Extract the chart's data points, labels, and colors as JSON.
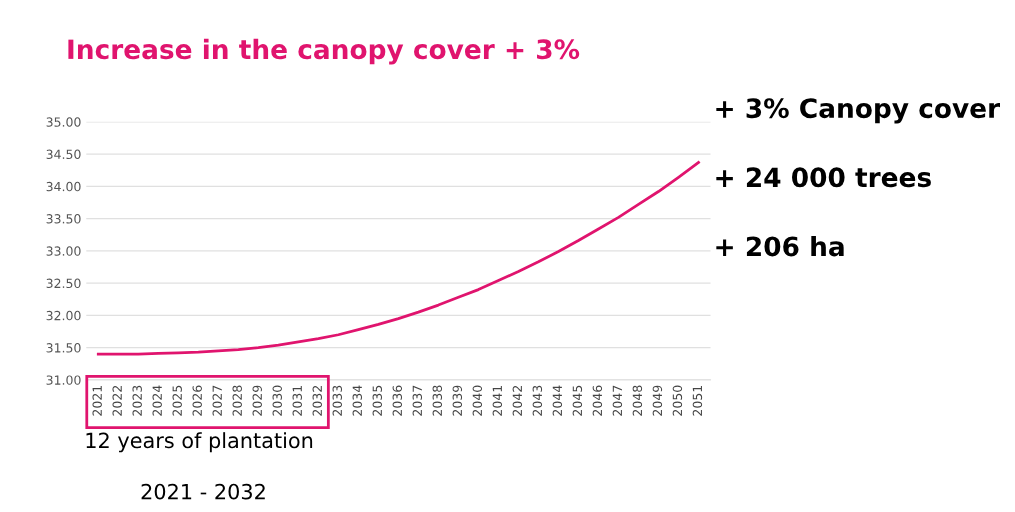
{
  "chart_data": {
    "type": "line",
    "title": "Increase in the canopy cover + 3%",
    "categories": [
      "2021",
      "2022",
      "2023",
      "2024",
      "2025",
      "2026",
      "2027",
      "2028",
      "2029",
      "2030",
      "2031",
      "2032",
      "2033",
      "2034",
      "2035",
      "2036",
      "2037",
      "2038",
      "2039",
      "2040",
      "2041",
      "2042",
      "2043",
      "2044",
      "2045",
      "2046",
      "2047",
      "2048",
      "2049",
      "2050",
      "2051"
    ],
    "series": [
      {
        "color": "#e0146e",
        "values": [
          31.4,
          31.4,
          31.4,
          31.41,
          31.42,
          31.43,
          31.45,
          31.47,
          31.5,
          31.54,
          31.59,
          31.64,
          31.7,
          31.78,
          31.86,
          31.95,
          32.05,
          32.16,
          32.28,
          32.4,
          32.54,
          32.68,
          32.83,
          32.99,
          33.16,
          33.34,
          33.52,
          33.72,
          33.92,
          34.14,
          34.37
        ]
      }
    ],
    "ylim": [
      31,
      35
    ],
    "yticks": [
      {
        "value": 31,
        "label": "31.00"
      },
      {
        "value": 31.5,
        "label": "31.50"
      },
      {
        "value": 32,
        "label": "32.00"
      },
      {
        "value": 32.5,
        "label": "32.50"
      },
      {
        "value": 33,
        "label": "33.00"
      },
      {
        "value": 33.5,
        "label": "33.50"
      },
      {
        "value": 34,
        "label": "34.00"
      },
      {
        "value": 34.5,
        "label": "34.50"
      },
      {
        "value": 35,
        "label": "35.00"
      }
    ],
    "grid": "y",
    "marker": "none",
    "line_style": "solid",
    "legend": false,
    "annotations": [
      "+ 3% Canopy cover",
      "+ 24 000 trees",
      "+ 206 ha",
      "12 years of plantation",
      "2021 - 2032"
    ]
  }
}
